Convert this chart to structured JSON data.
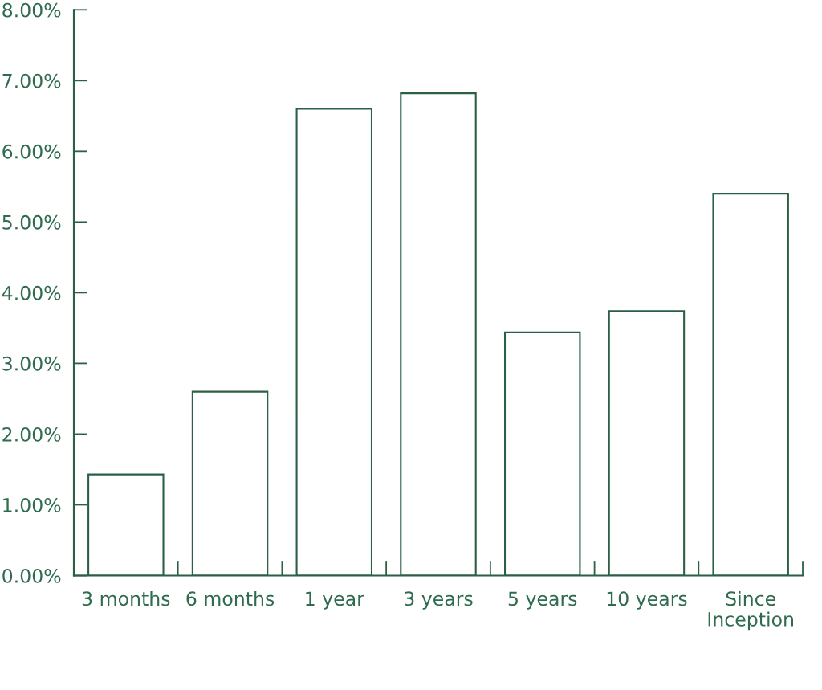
{
  "chart_data": {
    "type": "bar",
    "categories": [
      "3 months",
      "6 months",
      "1 year",
      "3 years",
      "5 years",
      "10 years",
      "Since Inception"
    ],
    "values": [
      1.43,
      2.6,
      6.6,
      6.82,
      3.44,
      3.74,
      5.4
    ],
    "color": "#ffffff",
    "ylim": [
      0,
      8
    ],
    "yticks": [
      {
        "value": 0,
        "label": "0.00%"
      },
      {
        "value": 1,
        "label": "1.00%"
      },
      {
        "value": 2,
        "label": "2.00%"
      },
      {
        "value": 3,
        "label": "3.00%"
      },
      {
        "value": 4,
        "label": "4.00%"
      },
      {
        "value": 5,
        "label": "5.00%"
      },
      {
        "value": 6,
        "label": "6.00%"
      },
      {
        "value": 7,
        "label": "7.00%"
      },
      {
        "value": 8,
        "label": "8.00%"
      }
    ],
    "grid": false,
    "legend": false
  }
}
